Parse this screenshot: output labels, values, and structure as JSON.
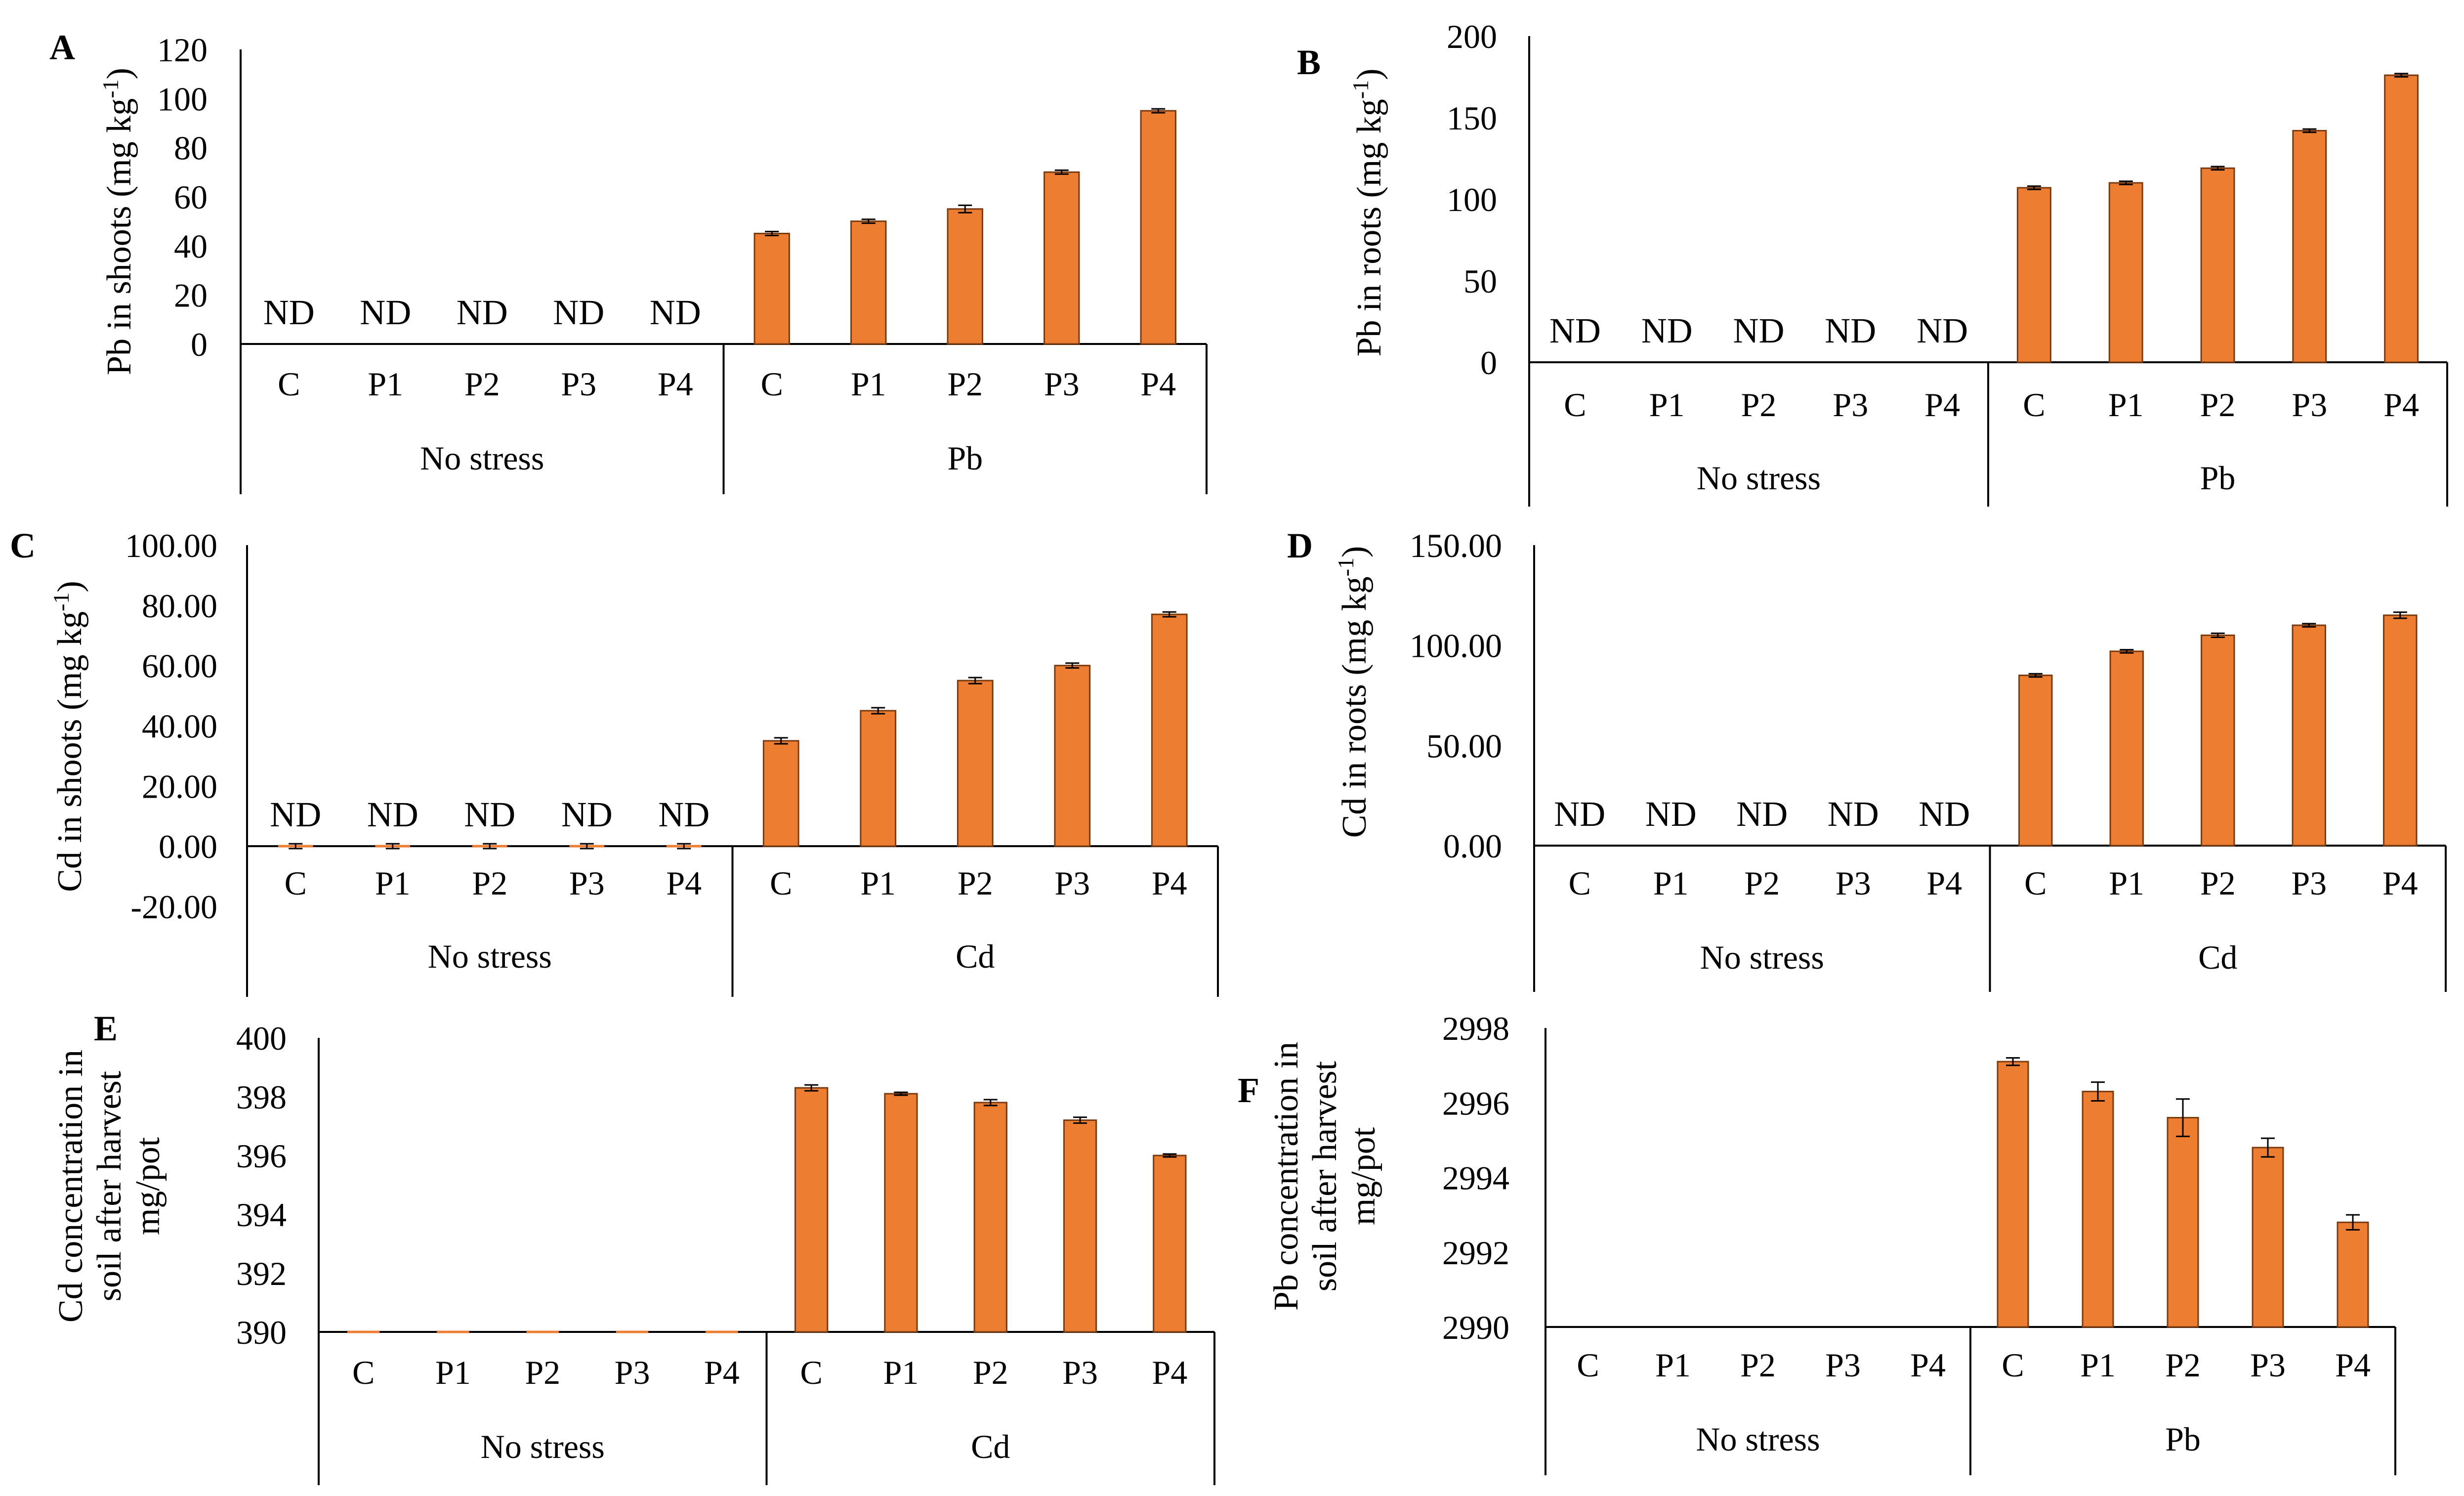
{
  "chart_data": [
    {
      "panel_label": "A",
      "type": "bar",
      "ylabel": "Pb in shoots (mg kg",
      "ylabel_sup": "-1",
      "ylabel_end": ")",
      "yticks": [
        "0",
        "20",
        "40",
        "60",
        "80",
        "100",
        "120"
      ],
      "ylim": [
        0,
        120
      ],
      "categories": [
        "C",
        "P1",
        "P2",
        "P3",
        "P4",
        "C",
        "P1",
        "P2",
        "P3",
        "P4"
      ],
      "groups": [
        "No stress",
        "Pb"
      ],
      "values": [
        null,
        null,
        null,
        null,
        null,
        45,
        50,
        55,
        70,
        95
      ],
      "errors": [
        0,
        0,
        0,
        0,
        0,
        0.8,
        0.8,
        1.5,
        0.8,
        0.8
      ],
      "nd_label": "ND",
      "bar_color": "#ED7D31"
    },
    {
      "panel_label": "B",
      "type": "bar",
      "ylabel": "Pb in roots (mg kg",
      "ylabel_sup": "-1",
      "ylabel_end": ")",
      "yticks": [
        "0",
        "50",
        "100",
        "150",
        "200"
      ],
      "ylim": [
        0,
        200
      ],
      "categories": [
        "C",
        "P1",
        "P2",
        "P3",
        "P4",
        "C",
        "P1",
        "P2",
        "P3",
        "P4"
      ],
      "groups": [
        "No stress",
        "Pb"
      ],
      "values": [
        null,
        null,
        null,
        null,
        null,
        107,
        110,
        119,
        142,
        176
      ],
      "errors": [
        0,
        0,
        0,
        0,
        0,
        1,
        1,
        1,
        1,
        1
      ],
      "nd_label": "ND",
      "bar_color": "#ED7D31"
    },
    {
      "panel_label": "C",
      "type": "bar",
      "ylabel": "Cd in shoots (mg kg",
      "ylabel_sup": "-1",
      "ylabel_end": ")",
      "yticks": [
        "-20.00",
        "0.00",
        "20.00",
        "40.00",
        "60.00",
        "80.00",
        "100.00"
      ],
      "ylim": [
        -20,
        100
      ],
      "categories": [
        "C",
        "P1",
        "P2",
        "P3",
        "P4",
        "C",
        "P1",
        "P2",
        "P3",
        "P4"
      ],
      "groups": [
        "No stress",
        "Cd"
      ],
      "values": [
        0,
        0,
        0,
        0,
        0,
        35,
        45,
        55,
        60,
        77
      ],
      "errors": [
        0.8,
        0.8,
        0.8,
        0.8,
        0.8,
        1,
        1,
        1,
        0.8,
        0.8
      ],
      "nd_label": "ND",
      "nd_indices": [
        0,
        1,
        2,
        3,
        4
      ],
      "bar_color": "#ED7D31"
    },
    {
      "panel_label": "D",
      "type": "bar",
      "ylabel": "Cd in roots (mg kg",
      "ylabel_sup": "-1",
      "ylabel_end": ")",
      "yticks": [
        "0.00",
        "50.00",
        "100.00",
        "150.00"
      ],
      "ylim": [
        0,
        150
      ],
      "categories": [
        "C",
        "P1",
        "P2",
        "P3",
        "P4",
        "C",
        "P1",
        "P2",
        "P3",
        "P4"
      ],
      "groups": [
        "No stress",
        "Cd"
      ],
      "values": [
        null,
        null,
        null,
        null,
        null,
        85,
        97,
        105,
        110,
        115
      ],
      "errors": [
        0,
        0,
        0,
        0,
        0,
        0.8,
        0.8,
        1,
        0.8,
        1.5
      ],
      "nd_label": "ND",
      "bar_color": "#ED7D31"
    },
    {
      "panel_label": "E",
      "type": "bar",
      "ylabel_lines": [
        "Cd concentration in",
        "soil after harvest",
        "mg/pot"
      ],
      "yticks": [
        "390",
        "392",
        "394",
        "396",
        "398",
        "400"
      ],
      "ylim": [
        390,
        400
      ],
      "categories": [
        "C",
        "P1",
        "P2",
        "P3",
        "P4",
        "C",
        "P1",
        "P2",
        "P3",
        "P4"
      ],
      "groups": [
        "No stress",
        "Cd"
      ],
      "values": [
        390,
        390,
        390,
        390,
        390,
        398.3,
        398.1,
        397.8,
        397.2,
        396
      ],
      "errors": [
        0,
        0,
        0,
        0,
        0,
        0.1,
        0.05,
        0.1,
        0.1,
        0.05
      ],
      "bar_color": "#ED7D31"
    },
    {
      "panel_label": "F",
      "type": "bar",
      "ylabel_lines": [
        "Pb concentration in",
        "soil after harvest",
        "mg/pot"
      ],
      "yticks": [
        "2990",
        "2992",
        "2994",
        "2996",
        "2998"
      ],
      "ylim": [
        2990,
        2998
      ],
      "categories": [
        "C",
        "P1",
        "P2",
        "P3",
        "P4",
        "C",
        "P1",
        "P2",
        "P3",
        "P4"
      ],
      "groups": [
        "No stress",
        "Pb"
      ],
      "values": [
        null,
        null,
        null,
        null,
        null,
        2997.1,
        2996.3,
        2995.6,
        2994.8,
        2992.8
      ],
      "errors": [
        0,
        0,
        0,
        0,
        0,
        0.1,
        0.25,
        0.5,
        0.25,
        0.2
      ],
      "bar_color": "#ED7D31"
    }
  ]
}
